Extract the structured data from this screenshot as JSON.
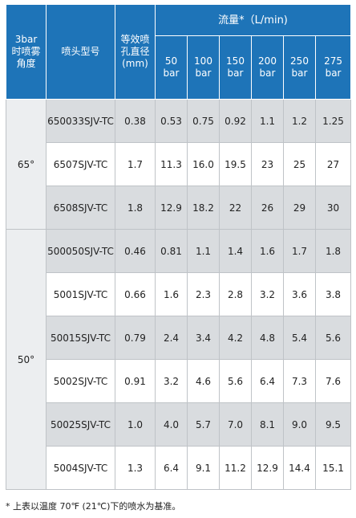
{
  "table": {
    "headers": {
      "angle": "3bar\n时喷雾\n角度",
      "model": "喷头型号",
      "diameter": "等效喷\n孔直径\n(mm)",
      "flow": "流量*（L/min)",
      "pressures": [
        "50\nbar",
        "100\nbar",
        "150\nbar",
        "200\nbar",
        "250\nbar",
        "275\nbar"
      ]
    },
    "groups": [
      {
        "angle": "65°",
        "rows": [
          {
            "model": "650033SJV-TC",
            "diameter": "0.38",
            "flows": [
              "0.53",
              "0.75",
              "0.92",
              "1.1",
              "1.2",
              "1.25"
            ]
          },
          {
            "model": "6507SJV-TC",
            "diameter": "1.7",
            "flows": [
              "11.3",
              "16.0",
              "19.5",
              "23",
              "25",
              "27"
            ]
          },
          {
            "model": "6508SJV-TC",
            "diameter": "1.8",
            "flows": [
              "12.9",
              "18.2",
              "22",
              "26",
              "29",
              "30"
            ]
          }
        ]
      },
      {
        "angle": "50°",
        "rows": [
          {
            "model": "500050SJV-TC",
            "diameter": "0.46",
            "flows": [
              "0.81",
              "1.1",
              "1.4",
              "1.6",
              "1.7",
              "1.8"
            ]
          },
          {
            "model": "5001SJV-TC",
            "diameter": "0.66",
            "flows": [
              "1.6",
              "2.3",
              "2.8",
              "3.2",
              "3.6",
              "3.8"
            ]
          },
          {
            "model": "50015SJV-TC",
            "diameter": "0.79",
            "flows": [
              "2.4",
              "3.4",
              "4.2",
              "4.8",
              "5.4",
              "5.6"
            ]
          },
          {
            "model": "5002SJV-TC",
            "diameter": "0.91",
            "flows": [
              "3.2",
              "4.6",
              "5.6",
              "6.4",
              "7.3",
              "7.6"
            ]
          },
          {
            "model": "50025SJV-TC",
            "diameter": "1.0",
            "flows": [
              "4.0",
              "5.7",
              "7.0",
              "8.1",
              "9.0",
              "9.5"
            ]
          },
          {
            "model": "5004SJV-TC",
            "diameter": "1.3",
            "flows": [
              "6.4",
              "9.1",
              "11.2",
              "12.9",
              "14.4",
              "15.1"
            ]
          }
        ]
      }
    ]
  },
  "footnote": "* 上表以温度 70℉ (21℃)下的喷水为基准。",
  "colors": {
    "header_bg": "#1e74b8",
    "shade_row": "#d9dcdf",
    "angle_bg": "#eceef0",
    "border": "#bfc3c7"
  }
}
